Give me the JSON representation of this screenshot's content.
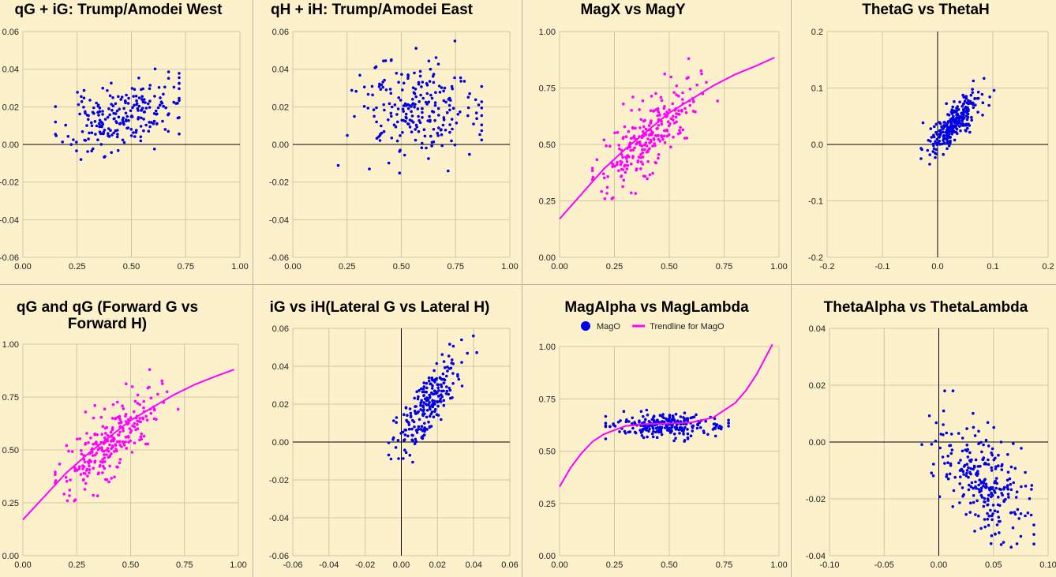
{
  "colors": {
    "background": "#fdf1cb",
    "grid": "#cfc6a6",
    "axis": "#000000",
    "blue": "#0000e6",
    "magenta": "#ff00ff"
  },
  "chart_data": [
    {
      "id": "c1",
      "type": "scatter",
      "title": [
        "qG + iG: Trump/Amodei West"
      ],
      "xlim": [
        0,
        1
      ],
      "ylim": [
        -0.06,
        0.06
      ],
      "xticks": [
        0.0,
        0.25,
        0.5,
        0.75,
        1.0
      ],
      "yticks": [
        -0.06,
        -0.04,
        -0.02,
        0.0,
        0.02,
        0.04,
        0.06
      ],
      "xtick_labels": [
        "0.00",
        "0.25",
        "0.50",
        "0.75",
        "1.00"
      ],
      "ytick_labels": [
        "-0.06",
        "-0.04",
        "-0.02",
        "0.00",
        "0.02",
        "0.04",
        "0.06"
      ],
      "zero_lines": {
        "x": false,
        "y": true
      },
      "series": [
        {
          "color": "blue",
          "cloud": {
            "n": 230,
            "x_center": 0.45,
            "x_sd": 0.13,
            "x_range": [
              0.15,
              0.72
            ],
            "y_base": 0.001,
            "y_slope": 0.03,
            "y_sd": 0.0085,
            "y_range": [
              -0.008,
              0.044
            ],
            "seed": 11
          }
        }
      ]
    },
    {
      "id": "c2",
      "type": "scatter",
      "title": [
        "qH + iH: Trump/Amodei East"
      ],
      "xlim": [
        0,
        1
      ],
      "ylim": [
        -0.06,
        0.06
      ],
      "xticks": [
        0.0,
        0.25,
        0.5,
        0.75,
        1.0
      ],
      "yticks": [
        -0.06,
        -0.04,
        -0.02,
        0.0,
        0.02,
        0.04,
        0.06
      ],
      "xtick_labels": [
        "0.00",
        "0.25",
        "0.50",
        "0.75",
        "1.00"
      ],
      "ytick_labels": [
        "-0.06",
        "-0.04",
        "-0.02",
        "0.00",
        "0.02",
        "0.04",
        "0.06"
      ],
      "zero_lines": {
        "x": false,
        "y": true
      },
      "series": [
        {
          "color": "blue",
          "cloud": {
            "n": 230,
            "x_center": 0.57,
            "x_sd": 0.14,
            "x_range": [
              0.12,
              0.87
            ],
            "y_base": 0.018,
            "y_slope": 0.0,
            "y_sd": 0.013,
            "y_range": [
              -0.016,
              0.055
            ],
            "seed": 23
          }
        }
      ]
    },
    {
      "id": "c3",
      "type": "scatter",
      "title": [
        "MagX vs MagY"
      ],
      "xlim": [
        0,
        1
      ],
      "ylim": [
        0,
        1
      ],
      "xticks": [
        0.0,
        0.25,
        0.5,
        0.75,
        1.0
      ],
      "yticks": [
        0.0,
        0.25,
        0.5,
        0.75,
        1.0
      ],
      "xtick_labels": [
        "0.00",
        "0.25",
        "0.50",
        "0.75",
        "1.00"
      ],
      "ytick_labels": [
        "0.00",
        "0.25",
        "0.50",
        "0.75",
        "1.00"
      ],
      "zero_lines": {
        "x": false,
        "y": false
      },
      "trendline": {
        "color": "magenta",
        "x": [
          0.0,
          0.1,
          0.2,
          0.3,
          0.4,
          0.5,
          0.6,
          0.7,
          0.8,
          0.9,
          0.98
        ],
        "y": [
          0.17,
          0.28,
          0.39,
          0.48,
          0.56,
          0.64,
          0.7,
          0.76,
          0.81,
          0.85,
          0.885
        ]
      },
      "series": [
        {
          "color": "magenta",
          "cloud": {
            "n": 260,
            "x_center": 0.42,
            "x_sd": 0.11,
            "x_range": [
              0.15,
              0.72
            ],
            "y_base": 0.22,
            "y_slope": 0.78,
            "y_sd": 0.075,
            "y_range": [
              0.13,
              0.88
            ],
            "seed": 37
          }
        }
      ]
    },
    {
      "id": "c4",
      "type": "scatter",
      "title": [
        "ThetaG vs ThetaH"
      ],
      "xlim": [
        -0.2,
        0.2
      ],
      "ylim": [
        -0.2,
        0.2
      ],
      "xticks": [
        -0.2,
        -0.1,
        0.0,
        0.1,
        0.2
      ],
      "yticks": [
        -0.2,
        -0.1,
        0.0,
        0.1,
        0.2
      ],
      "xtick_labels": [
        "-0.2",
        "-0.1",
        "0.0",
        "0.1",
        "0.2"
      ],
      "ytick_labels": [
        "-0.2",
        "-0.1",
        "0.0",
        "0.1",
        "0.2"
      ],
      "zero_lines": {
        "x": true,
        "y": true
      },
      "series": [
        {
          "color": "blue",
          "cloud": {
            "n": 260,
            "x_center": 0.03,
            "x_sd": 0.022,
            "x_range": [
              -0.03,
              0.12
            ],
            "y_base": 0.012,
            "y_slope": 0.9,
            "y_sd": 0.018,
            "y_range": [
              -0.035,
              0.14
            ],
            "seed": 41
          }
        }
      ]
    },
    {
      "id": "c5",
      "type": "scatter",
      "title": [
        "qG and qG (Forward G vs",
        "Forward H)"
      ],
      "xlim": [
        0,
        1
      ],
      "ylim": [
        0,
        1
      ],
      "xticks": [
        0.0,
        0.25,
        0.5,
        0.75,
        1.0
      ],
      "yticks": [
        0.0,
        0.25,
        0.5,
        0.75,
        1.0
      ],
      "xtick_labels": [
        "0.00",
        "0.25",
        "0.50",
        "0.75",
        "1.00"
      ],
      "ytick_labels": [
        "0.00",
        "0.25",
        "0.50",
        "0.75",
        "1.00"
      ],
      "zero_lines": {
        "x": false,
        "y": false
      },
      "trendline": {
        "color": "magenta",
        "x": [
          0.0,
          0.1,
          0.2,
          0.3,
          0.4,
          0.5,
          0.6,
          0.7,
          0.8,
          0.9,
          0.98
        ],
        "y": [
          0.17,
          0.28,
          0.39,
          0.48,
          0.56,
          0.64,
          0.7,
          0.76,
          0.81,
          0.85,
          0.88
        ]
      },
      "series": [
        {
          "color": "magenta",
          "cloud": {
            "n": 260,
            "x_center": 0.42,
            "x_sd": 0.11,
            "x_range": [
              0.15,
              0.72
            ],
            "y_base": 0.22,
            "y_slope": 0.78,
            "y_sd": 0.075,
            "y_range": [
              0.13,
              0.88
            ],
            "seed": 37
          }
        }
      ]
    },
    {
      "id": "c6",
      "type": "scatter",
      "title": [
        "iG vs iH(Lateral G vs Lateral H)"
      ],
      "xlim": [
        -0.06,
        0.06
      ],
      "ylim": [
        -0.06,
        0.06
      ],
      "xticks": [
        -0.06,
        -0.04,
        -0.02,
        0.0,
        0.02,
        0.04,
        0.06
      ],
      "yticks": [
        -0.06,
        -0.04,
        -0.02,
        0.0,
        0.02,
        0.04,
        0.06
      ],
      "xtick_labels": [
        "-0.06",
        "-0.04",
        "-0.02",
        "0.00",
        "0.02",
        "0.04",
        "0.06"
      ],
      "ytick_labels": [
        "-0.06",
        "-0.04",
        "-0.02",
        "0.00",
        "0.02",
        "0.04",
        "0.06"
      ],
      "zero_lines": {
        "x": true,
        "y": true
      },
      "series": [
        {
          "color": "blue",
          "cloud": {
            "n": 230,
            "x_center": 0.014,
            "x_sd": 0.0085,
            "x_range": [
              -0.007,
              0.043
            ],
            "y_base": 0.004,
            "y_slope": 1.1,
            "y_sd": 0.0075,
            "y_range": [
              -0.016,
              0.056
            ],
            "seed": 53
          }
        }
      ]
    },
    {
      "id": "c7",
      "type": "scatter",
      "title": [
        "MagAlpha vs MagLambda"
      ],
      "legend": [
        {
          "label": "MagO",
          "color": "blue",
          "kind": "dot"
        },
        {
          "label": "Trendline for MagO",
          "color": "magenta",
          "kind": "line"
        }
      ],
      "xlim": [
        0,
        1
      ],
      "ylim": [
        0,
        1
      ],
      "xticks": [
        0.0,
        0.25,
        0.5,
        0.75,
        1.0
      ],
      "yticks": [
        0.0,
        0.25,
        0.5,
        0.75,
        1.0
      ],
      "xtick_labels": [
        "0.00",
        "0.25",
        "0.50",
        "0.75",
        "1.00"
      ],
      "ytick_labels": [
        "0.00",
        "0.25",
        "0.50",
        "0.75",
        "1.00"
      ],
      "zero_lines": {
        "x": false,
        "y": false
      },
      "trendline": {
        "color": "magenta",
        "x": [
          0.0,
          0.05,
          0.1,
          0.15,
          0.2,
          0.3,
          0.4,
          0.5,
          0.6,
          0.7,
          0.8,
          0.85,
          0.9,
          0.95,
          0.97
        ],
        "y": [
          0.33,
          0.42,
          0.49,
          0.545,
          0.58,
          0.62,
          0.63,
          0.632,
          0.637,
          0.66,
          0.73,
          0.79,
          0.87,
          0.97,
          1.01
        ]
      },
      "series": [
        {
          "color": "blue",
          "cloud": {
            "n": 240,
            "x_center": 0.48,
            "x_sd": 0.13,
            "x_range": [
              0.21,
              0.77
            ],
            "y_base": 0.625,
            "y_slope": 0.0,
            "y_sd": 0.028,
            "y_range": [
              0.48,
              0.72
            ],
            "seed": 67
          }
        }
      ]
    },
    {
      "id": "c8",
      "type": "scatter",
      "title": [
        "ThetaAlpha vs ThetaLambda"
      ],
      "xlim": [
        -0.1,
        0.1
      ],
      "ylim": [
        -0.04,
        0.04
      ],
      "xticks": [
        -0.1,
        -0.05,
        0.0,
        0.05,
        0.1
      ],
      "yticks": [
        -0.04,
        -0.02,
        0.0,
        0.02,
        0.04
      ],
      "xtick_labels": [
        "-0.10",
        "-0.05",
        "0.00",
        "0.05",
        "0.10"
      ],
      "ytick_labels": [
        "-0.04",
        "-0.02",
        "0.00",
        "0.02",
        "0.04"
      ],
      "zero_lines": {
        "x": true,
        "y": true
      },
      "series": [
        {
          "color": "blue",
          "cloud": {
            "n": 260,
            "x_center": 0.04,
            "x_sd": 0.022,
            "x_range": [
              -0.02,
              0.087
            ],
            "y_base": -0.005,
            "y_slope": -0.22,
            "y_sd": 0.0085,
            "y_range": [
              -0.037,
              0.018
            ],
            "seed": 79
          }
        }
      ]
    }
  ]
}
